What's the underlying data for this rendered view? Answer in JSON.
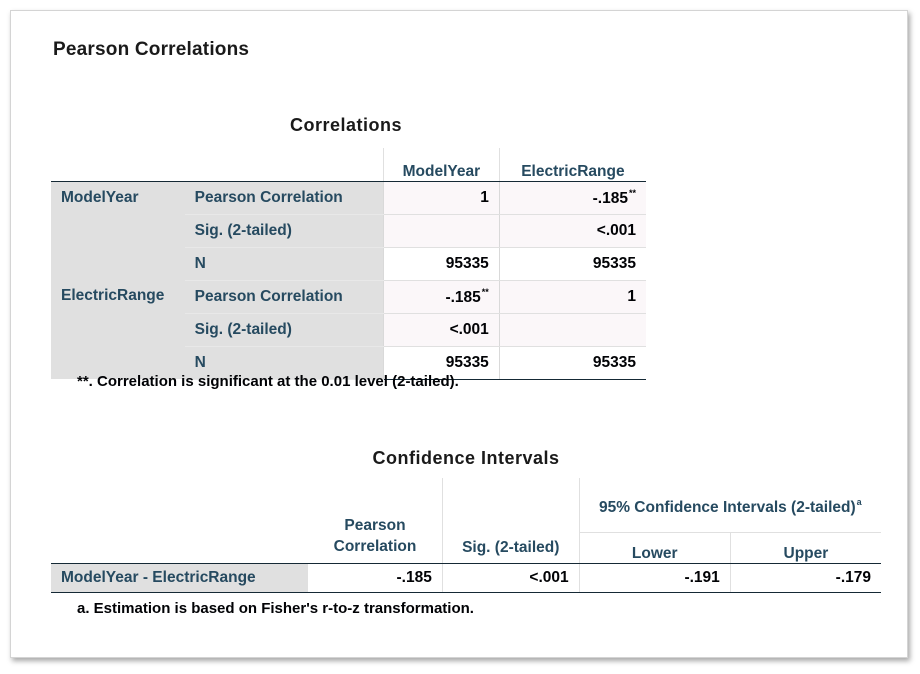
{
  "main_title": "Pearson Correlations",
  "correlations": {
    "title": "Correlations",
    "col_headers": [
      "ModelYear",
      "ElectricRange"
    ],
    "row_groups": [
      {
        "label": "ModelYear",
        "rows": [
          {
            "stat": "Pearson Correlation",
            "v1": "1",
            "v2": "-.185",
            "v2_sup": "**"
          },
          {
            "stat": "Sig. (2-tailed)",
            "v1": "",
            "v2": "<.001"
          },
          {
            "stat": "N",
            "v1": "95335",
            "v2": "95335"
          }
        ]
      },
      {
        "label": "ElectricRange",
        "rows": [
          {
            "stat": "Pearson Correlation",
            "v1": "-.185",
            "v1_sup": "**",
            "v2": "1"
          },
          {
            "stat": "Sig. (2-tailed)",
            "v1": "<.001",
            "v2": ""
          },
          {
            "stat": "N",
            "v1": "95335",
            "v2": "95335"
          }
        ]
      }
    ],
    "footnote": "**. Correlation is significant at the 0.01 level (2-tailed)."
  },
  "confidence": {
    "title": "Confidence Intervals",
    "headers": {
      "pearson": "Pearson Correlation",
      "sig": "Sig. (2-tailed)",
      "ci_group": "95% Confidence Intervals (2-tailed)",
      "ci_sup": "a",
      "lower": "Lower",
      "upper": "Upper"
    },
    "row": {
      "label": "ModelYear - ElectricRange",
      "pearson": "-.185",
      "sig": "<.001",
      "lower": "-.191",
      "upper": "-.179"
    },
    "footnote": "a. Estimation is based on Fisher's r-to-z transformation."
  }
}
